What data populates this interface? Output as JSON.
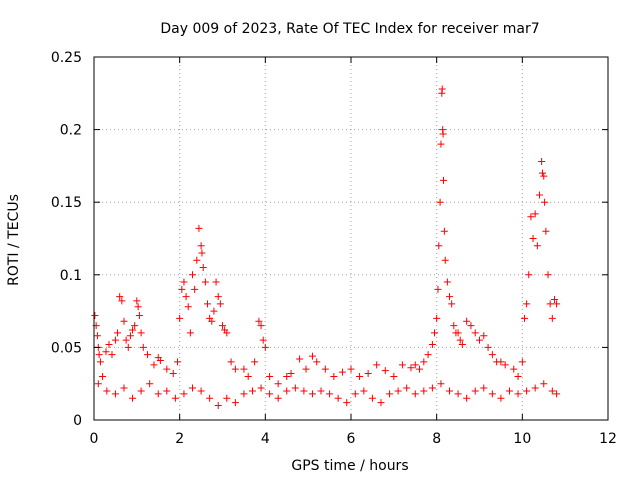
{
  "chart_data": {
    "type": "scatter",
    "title": "Day 009 of 2023, Rate Of TEC Index for receiver mar7",
    "xlabel": "GPS time / hours",
    "ylabel": "ROTI / TECUs",
    "xlim": [
      0,
      12
    ],
    "ylim": [
      0,
      0.25
    ],
    "x_ticks": [
      0,
      2,
      4,
      6,
      8,
      10,
      12
    ],
    "x_tick_labels": [
      "0",
      "2",
      "4",
      "6",
      "8",
      "10",
      "12"
    ],
    "y_ticks": [
      0,
      0.05,
      0.1,
      0.15,
      0.2,
      0.25
    ],
    "y_tick_labels": [
      "0",
      "0.05",
      "0.1",
      "0.15",
      "0.2",
      "0.25"
    ],
    "grid": true,
    "marker": "plus",
    "series_color": "#ff0000",
    "series": [
      {
        "name": "ROTI",
        "points": [
          [
            0.02,
            0.072
          ],
          [
            0.05,
            0.065
          ],
          [
            0.08,
            0.058
          ],
          [
            0.1,
            0.05
          ],
          [
            0.12,
            0.045
          ],
          [
            0.15,
            0.04
          ],
          [
            0.2,
            0.03
          ],
          [
            0.28,
            0.047
          ],
          [
            0.35,
            0.052
          ],
          [
            0.42,
            0.045
          ],
          [
            0.5,
            0.055
          ],
          [
            0.55,
            0.06
          ],
          [
            0.6,
            0.085
          ],
          [
            0.65,
            0.082
          ],
          [
            0.7,
            0.068
          ],
          [
            0.75,
            0.055
          ],
          [
            0.8,
            0.05
          ],
          [
            0.85,
            0.058
          ],
          [
            0.9,
            0.062
          ],
          [
            0.95,
            0.065
          ],
          [
            1.0,
            0.082
          ],
          [
            1.03,
            0.078
          ],
          [
            1.06,
            0.072
          ],
          [
            1.1,
            0.06
          ],
          [
            1.15,
            0.05
          ],
          [
            1.25,
            0.045
          ],
          [
            1.4,
            0.038
          ],
          [
            1.5,
            0.043
          ],
          [
            1.55,
            0.041
          ],
          [
            1.7,
            0.035
          ],
          [
            1.85,
            0.032
          ],
          [
            1.95,
            0.04
          ],
          [
            2.0,
            0.07
          ],
          [
            2.05,
            0.09
          ],
          [
            2.1,
            0.095
          ],
          [
            2.15,
            0.085
          ],
          [
            2.2,
            0.078
          ],
          [
            2.25,
            0.06
          ],
          [
            2.3,
            0.1
          ],
          [
            2.35,
            0.09
          ],
          [
            2.4,
            0.11
          ],
          [
            2.45,
            0.132
          ],
          [
            2.5,
            0.12
          ],
          [
            2.52,
            0.115
          ],
          [
            2.55,
            0.105
          ],
          [
            2.6,
            0.095
          ],
          [
            2.65,
            0.08
          ],
          [
            2.7,
            0.07
          ],
          [
            2.75,
            0.068
          ],
          [
            2.8,
            0.075
          ],
          [
            2.85,
            0.095
          ],
          [
            2.9,
            0.085
          ],
          [
            2.95,
            0.08
          ],
          [
            3.0,
            0.065
          ],
          [
            3.05,
            0.062
          ],
          [
            3.1,
            0.06
          ],
          [
            3.2,
            0.04
          ],
          [
            3.3,
            0.035
          ],
          [
            3.5,
            0.035
          ],
          [
            3.6,
            0.03
          ],
          [
            3.75,
            0.04
          ],
          [
            3.85,
            0.068
          ],
          [
            3.9,
            0.065
          ],
          [
            3.95,
            0.055
          ],
          [
            4.0,
            0.05
          ],
          [
            4.1,
            0.03
          ],
          [
            4.3,
            0.025
          ],
          [
            4.5,
            0.03
          ],
          [
            4.6,
            0.032
          ],
          [
            4.8,
            0.042
          ],
          [
            4.95,
            0.035
          ],
          [
            5.1,
            0.044
          ],
          [
            5.2,
            0.04
          ],
          [
            5.4,
            0.035
          ],
          [
            5.6,
            0.03
          ],
          [
            5.8,
            0.033
          ],
          [
            6.0,
            0.035
          ],
          [
            6.2,
            0.03
          ],
          [
            6.4,
            0.032
          ],
          [
            6.6,
            0.038
          ],
          [
            6.8,
            0.034
          ],
          [
            7.0,
            0.03
          ],
          [
            7.2,
            0.038
          ],
          [
            7.4,
            0.036
          ],
          [
            7.5,
            0.038
          ],
          [
            7.6,
            0.035
          ],
          [
            7.7,
            0.04
          ],
          [
            7.8,
            0.045
          ],
          [
            7.9,
            0.052
          ],
          [
            7.95,
            0.06
          ],
          [
            8.0,
            0.07
          ],
          [
            8.03,
            0.09
          ],
          [
            8.05,
            0.12
          ],
          [
            8.08,
            0.15
          ],
          [
            8.1,
            0.19
          ],
          [
            8.12,
            0.225
          ],
          [
            8.13,
            0.228
          ],
          [
            8.14,
            0.2
          ],
          [
            8.15,
            0.197
          ],
          [
            8.16,
            0.165
          ],
          [
            8.18,
            0.13
          ],
          [
            8.2,
            0.11
          ],
          [
            8.25,
            0.095
          ],
          [
            8.3,
            0.085
          ],
          [
            8.35,
            0.08
          ],
          [
            8.4,
            0.065
          ],
          [
            8.45,
            0.06
          ],
          [
            8.5,
            0.06
          ],
          [
            8.55,
            0.055
          ],
          [
            8.6,
            0.052
          ],
          [
            8.7,
            0.068
          ],
          [
            8.8,
            0.065
          ],
          [
            8.9,
            0.06
          ],
          [
            9.0,
            0.055
          ],
          [
            9.1,
            0.058
          ],
          [
            9.2,
            0.05
          ],
          [
            9.3,
            0.045
          ],
          [
            9.4,
            0.04
          ],
          [
            9.5,
            0.04
          ],
          [
            9.6,
            0.038
          ],
          [
            9.8,
            0.035
          ],
          [
            9.9,
            0.03
          ],
          [
            10.0,
            0.04
          ],
          [
            10.05,
            0.07
          ],
          [
            10.1,
            0.08
          ],
          [
            10.15,
            0.1
          ],
          [
            10.2,
            0.14
          ],
          [
            10.25,
            0.125
          ],
          [
            10.3,
            0.142
          ],
          [
            10.35,
            0.12
          ],
          [
            10.4,
            0.155
          ],
          [
            10.45,
            0.178
          ],
          [
            10.47,
            0.17
          ],
          [
            10.5,
            0.168
          ],
          [
            10.52,
            0.15
          ],
          [
            10.55,
            0.13
          ],
          [
            10.6,
            0.1
          ],
          [
            10.65,
            0.08
          ],
          [
            10.7,
            0.07
          ],
          [
            10.75,
            0.083
          ],
          [
            10.8,
            0.08
          ],
          [
            0.1,
            0.025
          ],
          [
            0.3,
            0.02
          ],
          [
            0.5,
            0.018
          ],
          [
            0.7,
            0.022
          ],
          [
            0.9,
            0.015
          ],
          [
            1.1,
            0.02
          ],
          [
            1.3,
            0.025
          ],
          [
            1.5,
            0.018
          ],
          [
            1.7,
            0.02
          ],
          [
            1.9,
            0.015
          ],
          [
            2.1,
            0.018
          ],
          [
            2.3,
            0.022
          ],
          [
            2.5,
            0.02
          ],
          [
            2.7,
            0.015
          ],
          [
            2.9,
            0.01
          ],
          [
            3.1,
            0.015
          ],
          [
            3.3,
            0.012
          ],
          [
            3.5,
            0.018
          ],
          [
            3.7,
            0.02
          ],
          [
            3.9,
            0.022
          ],
          [
            4.1,
            0.018
          ],
          [
            4.3,
            0.015
          ],
          [
            4.5,
            0.02
          ],
          [
            4.7,
            0.022
          ],
          [
            4.9,
            0.02
          ],
          [
            5.1,
            0.018
          ],
          [
            5.3,
            0.02
          ],
          [
            5.5,
            0.018
          ],
          [
            5.7,
            0.015
          ],
          [
            5.9,
            0.012
          ],
          [
            6.1,
            0.018
          ],
          [
            6.3,
            0.02
          ],
          [
            6.5,
            0.015
          ],
          [
            6.7,
            0.012
          ],
          [
            6.9,
            0.018
          ],
          [
            7.1,
            0.02
          ],
          [
            7.3,
            0.022
          ],
          [
            7.5,
            0.018
          ],
          [
            7.7,
            0.02
          ],
          [
            7.9,
            0.022
          ],
          [
            8.1,
            0.025
          ],
          [
            8.3,
            0.02
          ],
          [
            8.5,
            0.018
          ],
          [
            8.7,
            0.015
          ],
          [
            8.9,
            0.02
          ],
          [
            9.1,
            0.022
          ],
          [
            9.3,
            0.018
          ],
          [
            9.5,
            0.015
          ],
          [
            9.7,
            0.02
          ],
          [
            9.9,
            0.018
          ],
          [
            10.1,
            0.02
          ],
          [
            10.3,
            0.022
          ],
          [
            10.5,
            0.025
          ],
          [
            10.7,
            0.02
          ],
          [
            10.8,
            0.018
          ]
        ]
      }
    ]
  }
}
